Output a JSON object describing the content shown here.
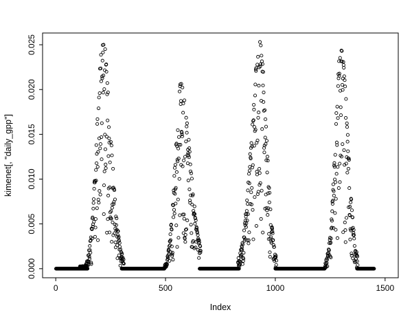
{
  "figure": {
    "background": "#ffffff",
    "foreground": "#000000"
  },
  "chart_data": {
    "type": "scatter",
    "title": "",
    "xlabel": "Index",
    "ylabel": "kimenet[, \"daily_gpp\"]",
    "xlim": [
      0,
      1500
    ],
    "ylim": [
      0.0,
      0.025
    ],
    "x_ticks": [
      0,
      500,
      1000,
      1500
    ],
    "x_tick_labels": [
      "0",
      "500",
      "1000",
      "1500"
    ],
    "y_ticks": [
      0.0,
      0.005,
      0.01,
      0.015,
      0.02,
      0.025
    ],
    "y_tick_labels": [
      "0.000",
      "0.005",
      "0.010",
      "0.015",
      "0.020",
      "0.025"
    ],
    "grid": false,
    "legend": "none",
    "marker": "open-circle",
    "marker_color": "#000000",
    "style": "r-base-plot",
    "seed": 42,
    "zero_segments": [
      [
        1,
        145
      ],
      [
        300,
        495
      ],
      [
        655,
        835
      ],
      [
        1000,
        1225
      ],
      [
        1372,
        1450
      ]
    ],
    "peaks": [
      {
        "x_start": 110,
        "x_peak": 215,
        "x_end": 310,
        "y_max": 0.0253,
        "sigma_rise": 28,
        "sigma_fall": 36,
        "scatter": 0.85
      },
      {
        "x_start": 495,
        "x_peak": 570,
        "x_end": 660,
        "y_max": 0.0206,
        "sigma_rise": 26,
        "sigma_fall": 42,
        "scatter": 0.85
      },
      {
        "x_start": 830,
        "x_peak": 930,
        "x_end": 1005,
        "y_max": 0.0253,
        "sigma_rise": 38,
        "sigma_fall": 30,
        "scatter": 0.85
      },
      {
        "x_start": 1225,
        "x_peak": 1300,
        "x_end": 1375,
        "y_max": 0.0247,
        "sigma_rise": 26,
        "sigma_fall": 30,
        "scatter": 0.85
      }
    ]
  }
}
